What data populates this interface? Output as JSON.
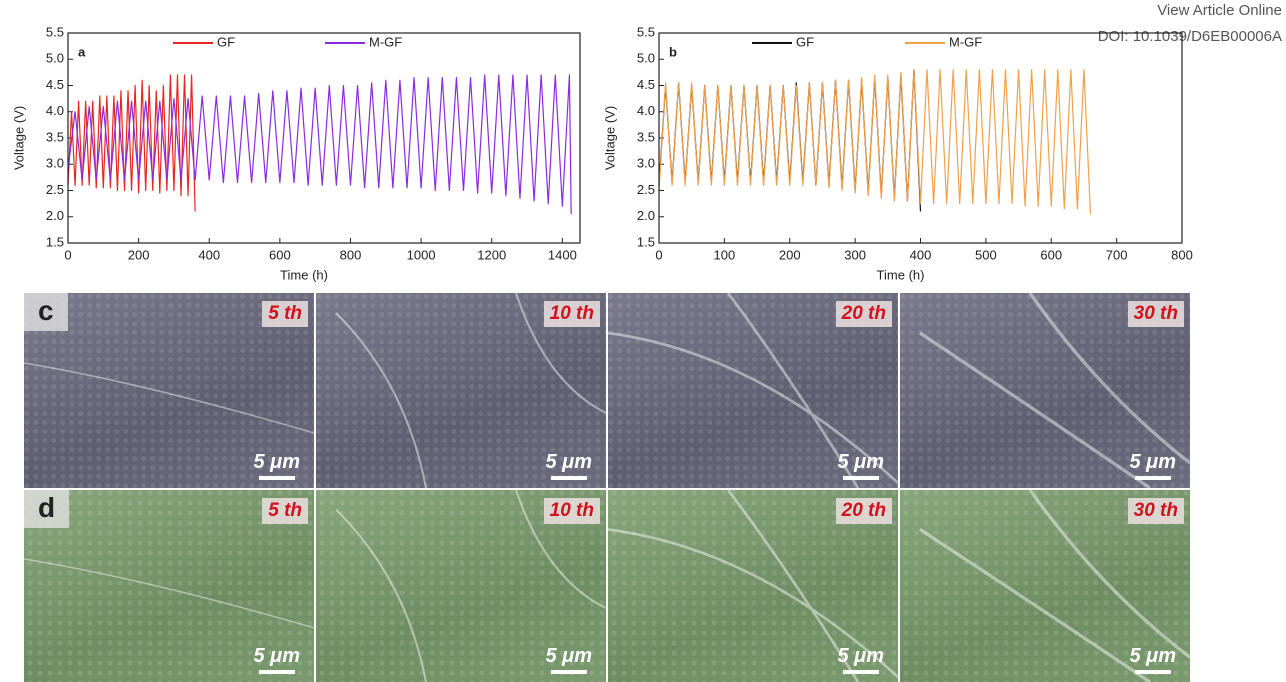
{
  "header": {
    "link": "View Article Online",
    "doi": "DOI: 10.1039/D6EB00006A"
  },
  "chart_data": [
    {
      "type": "line",
      "label": "a",
      "xlabel": "Time (h)",
      "ylabel": "Voltage (V)",
      "xlim": [
        0,
        1450
      ],
      "xticks": [
        0,
        200,
        400,
        600,
        800,
        1000,
        1200,
        1400
      ],
      "ylim": [
        1.5,
        5.5
      ],
      "yticks": [
        1.5,
        {
          "value": 2,
          "label": "2.0"
        },
        2.5,
        {
          "value": 3,
          "label": "3.0"
        },
        3.5,
        {
          "value": 4,
          "label": "4.0"
        },
        4.5,
        {
          "value": 5,
          "label": "5.0"
        },
        5.5
      ],
      "series": [
        {
          "name": "GF",
          "color": "#e8251f",
          "x": [
            0,
            10,
            20,
            30,
            40,
            50,
            60,
            70,
            80,
            90,
            100,
            110,
            120,
            130,
            140,
            150,
            160,
            170,
            180,
            190,
            200,
            210,
            220,
            230,
            240,
            250,
            260,
            270,
            280,
            290,
            300,
            310,
            320,
            330,
            340,
            350,
            360
          ],
          "values": [
            2.6,
            4.0,
            2.6,
            4.2,
            2.6,
            4.2,
            2.6,
            4.2,
            2.55,
            4.3,
            2.55,
            4.3,
            2.55,
            4.3,
            2.5,
            4.4,
            2.5,
            4.4,
            2.5,
            4.5,
            2.45,
            4.6,
            2.5,
            4.5,
            2.5,
            4.4,
            2.45,
            4.5,
            2.5,
            4.7,
            2.5,
            4.7,
            2.4,
            4.7,
            2.4,
            4.7,
            2.1
          ]
        },
        {
          "name": "M-GF",
          "color": "#8a2be2",
          "x": [
            0,
            20,
            40,
            60,
            80,
            100,
            120,
            140,
            160,
            180,
            200,
            220,
            240,
            260,
            280,
            300,
            320,
            340,
            360,
            380,
            400,
            420,
            440,
            460,
            480,
            500,
            520,
            540,
            560,
            580,
            600,
            620,
            640,
            660,
            680,
            700,
            720,
            740,
            760,
            780,
            800,
            820,
            840,
            860,
            880,
            900,
            920,
            940,
            960,
            980,
            1000,
            1020,
            1040,
            1060,
            1080,
            1100,
            1120,
            1140,
            1160,
            1180,
            1200,
            1220,
            1240,
            1260,
            1280,
            1300,
            1320,
            1340,
            1360,
            1380,
            1400,
            1420,
            1425
          ],
          "values": [
            2.9,
            4.0,
            2.7,
            4.1,
            2.7,
            4.1,
            2.7,
            4.2,
            2.7,
            4.2,
            2.7,
            4.2,
            2.7,
            4.2,
            2.7,
            4.25,
            2.7,
            4.25,
            2.7,
            4.3,
            2.7,
            4.3,
            2.65,
            4.3,
            2.65,
            4.3,
            2.65,
            4.35,
            2.65,
            4.4,
            2.65,
            4.4,
            2.65,
            4.45,
            2.6,
            4.45,
            2.6,
            4.5,
            2.6,
            4.5,
            2.6,
            4.5,
            2.55,
            4.55,
            2.55,
            4.6,
            2.55,
            4.6,
            2.55,
            4.65,
            2.55,
            4.65,
            2.5,
            4.65,
            2.5,
            4.65,
            2.5,
            4.65,
            2.45,
            4.7,
            2.45,
            4.7,
            2.4,
            4.7,
            2.35,
            4.7,
            2.3,
            4.7,
            2.25,
            4.7,
            2.2,
            4.7,
            2.05
          ]
        }
      ]
    },
    {
      "type": "line",
      "label": "b",
      "xlabel": "Time (h)",
      "ylabel": "Voltage (V)",
      "xlim": [
        0,
        800
      ],
      "xticks": [
        0,
        100,
        200,
        300,
        400,
        500,
        600,
        700,
        800
      ],
      "ylim": [
        1.5,
        5.5
      ],
      "yticks": [
        1.5,
        {
          "value": 2,
          "label": "2.0"
        },
        2.5,
        {
          "value": 3,
          "label": "3.0"
        },
        3.5,
        {
          "value": 4,
          "label": "4.0"
        },
        4.5,
        {
          "value": 5,
          "label": "5.0"
        },
        5.5
      ],
      "series": [
        {
          "name": "GF",
          "color": "#111111",
          "x": [
            0,
            10,
            20,
            30,
            40,
            50,
            60,
            70,
            80,
            90,
            100,
            110,
            120,
            130,
            140,
            150,
            160,
            170,
            180,
            190,
            200,
            210,
            220,
            230,
            240,
            250,
            260,
            270,
            280,
            290,
            300,
            310,
            320,
            330,
            340,
            350,
            360,
            370,
            380,
            390,
            400
          ],
          "values": [
            2.6,
            4.5,
            2.65,
            4.55,
            2.65,
            4.5,
            2.65,
            4.5,
            2.65,
            4.5,
            2.65,
            4.5,
            2.65,
            4.5,
            2.65,
            4.5,
            2.65,
            4.5,
            2.65,
            4.5,
            2.65,
            4.55,
            2.65,
            4.55,
            2.6,
            4.55,
            2.6,
            4.6,
            2.55,
            4.6,
            2.5,
            4.6,
            2.45,
            4.65,
            2.4,
            4.65,
            2.35,
            4.7,
            2.3,
            4.8,
            2.1
          ]
        },
        {
          "name": "M-GF",
          "color": "#f0a04b",
          "x": [
            0,
            10,
            20,
            30,
            40,
            50,
            60,
            70,
            80,
            90,
            100,
            110,
            120,
            130,
            140,
            150,
            160,
            170,
            180,
            190,
            200,
            210,
            220,
            230,
            240,
            250,
            260,
            270,
            280,
            290,
            300,
            310,
            320,
            330,
            340,
            350,
            360,
            370,
            380,
            390,
            400,
            410,
            420,
            430,
            440,
            450,
            460,
            470,
            480,
            490,
            500,
            510,
            520,
            530,
            540,
            550,
            560,
            570,
            580,
            590,
            600,
            610,
            620,
            630,
            640,
            650,
            660
          ],
          "values": [
            2.5,
            4.55,
            2.6,
            4.55,
            2.6,
            4.55,
            2.6,
            4.5,
            2.6,
            4.5,
            2.6,
            4.5,
            2.6,
            4.5,
            2.6,
            4.5,
            2.6,
            4.5,
            2.6,
            4.5,
            2.6,
            4.5,
            2.6,
            4.55,
            2.6,
            4.55,
            2.55,
            4.6,
            2.5,
            4.6,
            2.45,
            4.65,
            2.4,
            4.7,
            2.35,
            4.7,
            2.3,
            4.75,
            2.3,
            4.8,
            2.25,
            4.8,
            2.25,
            4.8,
            2.25,
            4.8,
            2.25,
            4.8,
            2.25,
            4.8,
            2.25,
            4.8,
            2.25,
            4.8,
            2.25,
            4.8,
            2.2,
            4.8,
            2.2,
            4.8,
            2.2,
            4.8,
            2.15,
            4.8,
            2.15,
            4.8,
            2.05
          ]
        }
      ]
    }
  ],
  "sem": {
    "rows": [
      {
        "label": "c",
        "panels": [
          {
            "cycle": "5 th",
            "scale": "5 μm"
          },
          {
            "cycle": "10 th",
            "scale": "5 μm"
          },
          {
            "cycle": "20 th",
            "scale": "5 μm"
          },
          {
            "cycle": "30 th",
            "scale": "5 μm"
          }
        ]
      },
      {
        "label": "d",
        "panels": [
          {
            "cycle": "5 th",
            "scale": "5 μm"
          },
          {
            "cycle": "10 th",
            "scale": "5 μm"
          },
          {
            "cycle": "20 th",
            "scale": "5 μm"
          },
          {
            "cycle": "30 th",
            "scale": "5 μm"
          }
        ]
      }
    ]
  }
}
